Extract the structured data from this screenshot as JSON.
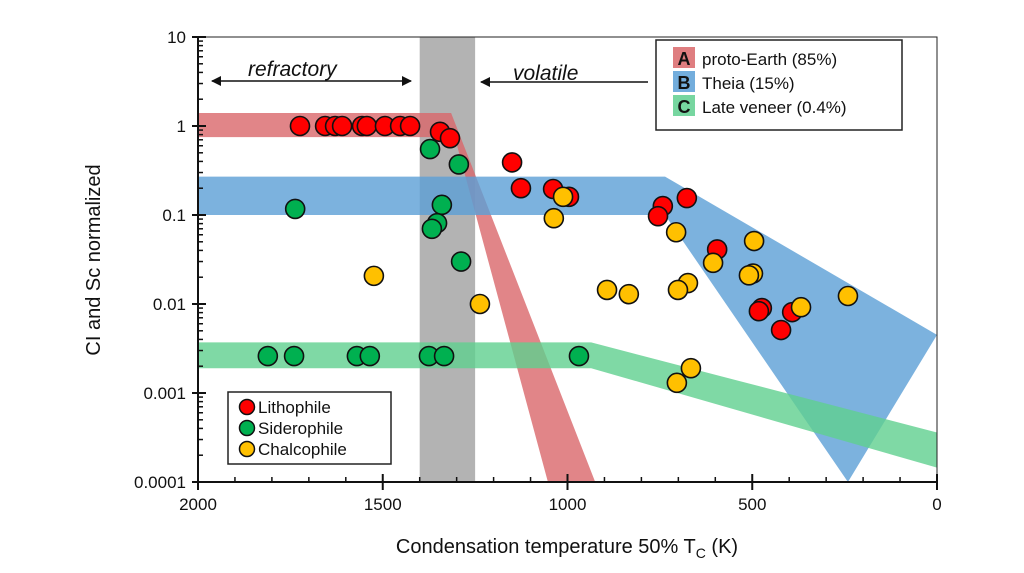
{
  "chart_data": {
    "type": "scatter",
    "xlabel": "Condensation temperature 50% T",
    "xlabel_sub": "C",
    "xlabel_unit": "(K)",
    "ylabel": "CI and Sc normalized",
    "xlim": [
      2000,
      0
    ],
    "x_reversed": true,
    "ylim": [
      0.0001,
      10
    ],
    "y_scale": "log",
    "x_ticks": [
      "2000",
      "1500",
      "1000",
      "500",
      "0"
    ],
    "x_tick_values": [
      2000,
      1500,
      1000,
      500,
      0
    ],
    "y_ticks": [
      "10",
      "1",
      "0.1",
      "0.01",
      "0.001",
      "0.0001"
    ],
    "y_tick_values": [
      10,
      1,
      0.1,
      0.01,
      0.001,
      0.0001
    ],
    "grid": false,
    "annotations": {
      "refractory": "refractory",
      "volatile": "volatile",
      "shaded_region_x": [
        1400,
        1250
      ],
      "shaded_color": "#b3b3b3"
    },
    "bands": [
      {
        "letter": "A",
        "name": "proto-Earth (85%)",
        "color": "#d9676a",
        "upper": [
          [
            2000,
            1.4
          ],
          [
            1315,
            1.4
          ],
          [
            925,
            0.0001
          ]
        ],
        "lower": [
          [
            2000,
            0.75
          ],
          [
            1305,
            0.75
          ],
          [
            1053,
            0.0001
          ]
        ]
      },
      {
        "letter": "B",
        "name": "Theia (15%)",
        "color": "#5b9fd6",
        "upper": [
          [
            2000,
            0.27
          ],
          [
            736,
            0.27
          ],
          [
            0,
            0.0045
          ]
        ],
        "lower": [
          [
            2000,
            0.1
          ],
          [
            736,
            0.1
          ],
          [
            241,
            0.0001
          ]
        ]
      },
      {
        "letter": "C",
        "name": "Late veneer (0.4%)",
        "color": "#5fcf8f",
        "upper": [
          [
            2000,
            0.0037
          ],
          [
            936,
            0.0037
          ],
          [
            0,
            0.00036
          ]
        ],
        "lower": [
          [
            2000,
            0.0019
          ],
          [
            936,
            0.0019
          ],
          [
            0,
            0.000145
          ]
        ]
      }
    ],
    "legend_position": "top-right",
    "series": [
      {
        "name": "Lithophile",
        "color": "#ff0000",
        "points": [
          [
            1724,
            1.0
          ],
          [
            1656,
            1.0
          ],
          [
            1629,
            1.0
          ],
          [
            1610,
            1.0
          ],
          [
            1556,
            1.0
          ],
          [
            1543,
            1.0
          ],
          [
            1494,
            1.0
          ],
          [
            1453,
            1.0
          ],
          [
            1426,
            1.0
          ],
          [
            1345,
            0.86
          ],
          [
            1318,
            0.73
          ],
          [
            1150,
            0.39
          ],
          [
            1126,
            0.2
          ],
          [
            1039,
            0.196
          ],
          [
            996,
            0.16
          ],
          [
            742,
            0.126
          ],
          [
            755,
            0.097
          ],
          [
            677,
            0.155
          ],
          [
            595,
            0.041
          ],
          [
            474,
            0.009
          ],
          [
            482,
            0.0083
          ],
          [
            392,
            0.0081
          ],
          [
            422,
            0.0051
          ]
        ]
      },
      {
        "name": "Siderophile",
        "color": "#00b050",
        "points": [
          [
            1737,
            0.117
          ],
          [
            1372,
            0.55
          ],
          [
            1294,
            0.37
          ],
          [
            1340,
            0.13
          ],
          [
            1353,
            0.081
          ],
          [
            1367,
            0.07
          ],
          [
            1288,
            0.03
          ],
          [
            1811,
            0.0026
          ],
          [
            1740,
            0.0026
          ],
          [
            1570,
            0.0026
          ],
          [
            1535,
            0.0026
          ],
          [
            1375,
            0.0026
          ],
          [
            1334,
            0.0026
          ],
          [
            969,
            0.0026
          ]
        ]
      },
      {
        "name": "Chalcophile",
        "color": "#ffc000",
        "points": [
          [
            1012,
            0.16
          ],
          [
            1037,
            0.092
          ],
          [
            706,
            0.064
          ],
          [
            495,
            0.051
          ],
          [
            606,
            0.029
          ],
          [
            498,
            0.022
          ],
          [
            509,
            0.021
          ],
          [
            241,
            0.0123
          ],
          [
            368,
            0.0092
          ],
          [
            893,
            0.0144
          ],
          [
            834,
            0.0129
          ],
          [
            674,
            0.0172
          ],
          [
            701,
            0.0144
          ],
          [
            666,
            0.0019
          ],
          [
            704,
            0.0013
          ],
          [
            1524,
            0.0207
          ],
          [
            1237,
            0.01
          ]
        ]
      }
    ],
    "series_legend_position": "bottom-left"
  }
}
